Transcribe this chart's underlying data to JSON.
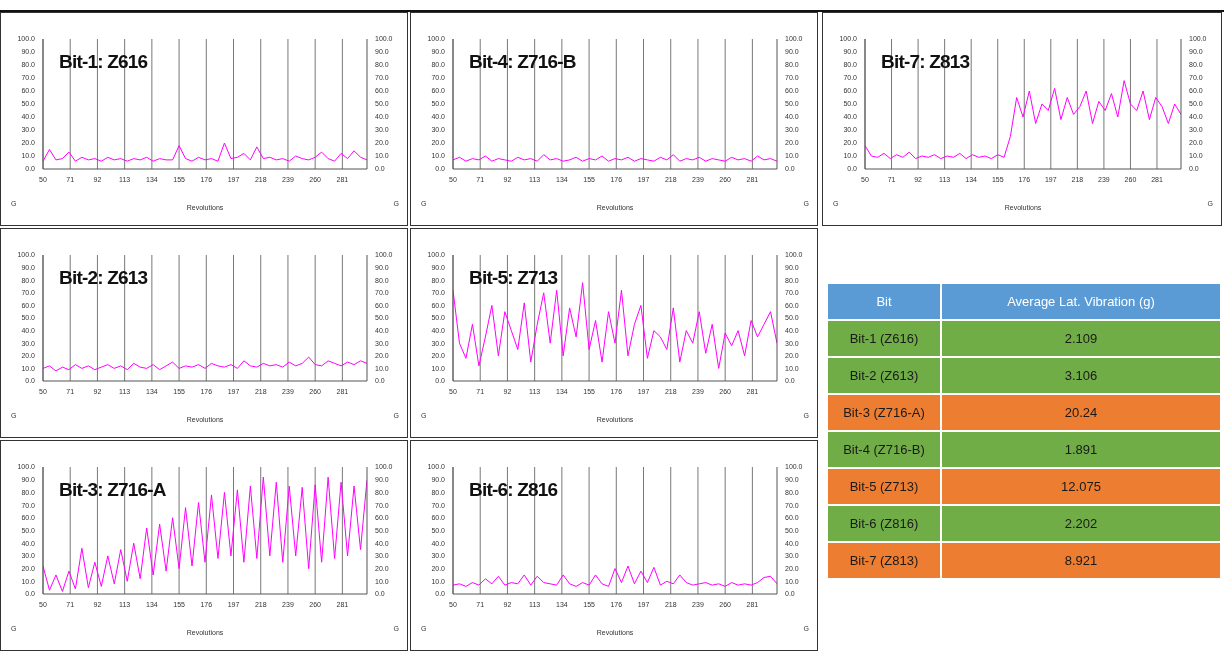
{
  "chart_data": [
    {
      "type": "line",
      "title": "Bit-1: Z616",
      "xlabel": "Revolutions",
      "ylabel": "G",
      "y2label": "G",
      "color": "#ff00ff",
      "grid": true,
      "xlim": [
        50,
        300
      ],
      "xticks": [
        50,
        71,
        92,
        113,
        134,
        155,
        176,
        197,
        218,
        239,
        260,
        281
      ],
      "ylim": [
        0,
        100
      ],
      "yticks": [
        {
          "value": 0,
          "label": "0.0"
        },
        {
          "value": 10,
          "label": "10.0"
        },
        {
          "value": 20,
          "label": "20.0"
        },
        {
          "value": 30,
          "label": "30.0"
        },
        {
          "value": 40,
          "label": "40.0"
        },
        {
          "value": 50,
          "label": "50.0"
        },
        {
          "value": 60,
          "label": "60.0"
        },
        {
          "value": 70,
          "label": "70.0"
        },
        {
          "value": 80,
          "label": "80.0"
        },
        {
          "value": 90,
          "label": "90.0"
        },
        {
          "value": 100,
          "label": "100.0"
        }
      ],
      "y2lim": [
        0,
        100
      ],
      "y2ticks": [
        {
          "value": 0,
          "label": "0.0"
        },
        {
          "value": 10,
          "label": "10.0"
        },
        {
          "value": 20,
          "label": "20.0"
        },
        {
          "value": 30,
          "label": "30.0"
        },
        {
          "value": 40,
          "label": "40.0"
        },
        {
          "value": 50,
          "label": "50.0"
        },
        {
          "value": 60,
          "label": "60.0"
        },
        {
          "value": 70,
          "label": "70.0"
        },
        {
          "value": 80,
          "label": "80.0"
        },
        {
          "value": 90,
          "label": "90.0"
        },
        {
          "value": 100,
          "label": "100.0"
        }
      ],
      "x": [
        50,
        55,
        60,
        65,
        70,
        75,
        80,
        85,
        90,
        95,
        100,
        105,
        110,
        115,
        120,
        125,
        130,
        135,
        140,
        145,
        150,
        155,
        160,
        165,
        170,
        175,
        180,
        185,
        190,
        195,
        200,
        205,
        210,
        215,
        220,
        225,
        230,
        235,
        240,
        245,
        250,
        255,
        260,
        265,
        270,
        275,
        280,
        285,
        290,
        295,
        300
      ],
      "values": [
        6,
        15,
        7,
        8,
        13,
        6,
        9,
        7,
        8,
        6,
        9,
        7,
        8,
        6,
        8,
        7,
        9,
        6,
        8,
        7,
        7,
        18,
        8,
        6,
        9,
        7,
        8,
        6,
        20,
        8,
        9,
        12,
        7,
        17,
        8,
        9,
        7,
        8,
        6,
        10,
        8,
        7,
        9,
        13,
        8,
        6,
        12,
        8,
        14,
        9,
        7
      ]
    },
    {
      "type": "line",
      "title": "Bit-4: Z716-B",
      "xlabel": "Revolutions",
      "ylabel": "G",
      "y2label": "G",
      "color": "#ff00ff",
      "grid": true,
      "xlim": [
        50,
        300
      ],
      "xticks": [
        50,
        71,
        92,
        113,
        134,
        155,
        176,
        197,
        218,
        239,
        260,
        281
      ],
      "ylim": [
        0,
        100
      ],
      "yticks": [
        {
          "value": 0,
          "label": "0.0"
        },
        {
          "value": 10,
          "label": "10.0"
        },
        {
          "value": 20,
          "label": "20.0"
        },
        {
          "value": 30,
          "label": "30.0"
        },
        {
          "value": 40,
          "label": "40.0"
        },
        {
          "value": 50,
          "label": "50.0"
        },
        {
          "value": 60,
          "label": "60.0"
        },
        {
          "value": 70,
          "label": "70.0"
        },
        {
          "value": 80,
          "label": "80.0"
        },
        {
          "value": 90,
          "label": "90.0"
        },
        {
          "value": 100,
          "label": "100.0"
        }
      ],
      "y2lim": [
        0,
        100
      ],
      "y2ticks": [
        {
          "value": 0,
          "label": "0.0"
        },
        {
          "value": 10,
          "label": "10.0"
        },
        {
          "value": 20,
          "label": "20.0"
        },
        {
          "value": 30,
          "label": "30.0"
        },
        {
          "value": 40,
          "label": "40.0"
        },
        {
          "value": 50,
          "label": "50.0"
        },
        {
          "value": 60,
          "label": "60.0"
        },
        {
          "value": 70,
          "label": "70.0"
        },
        {
          "value": 80,
          "label": "80.0"
        },
        {
          "value": 90,
          "label": "90.0"
        },
        {
          "value": 100,
          "label": "100.0"
        }
      ],
      "x": [
        50,
        55,
        60,
        65,
        70,
        75,
        80,
        85,
        90,
        95,
        100,
        105,
        110,
        115,
        120,
        125,
        130,
        135,
        140,
        145,
        150,
        155,
        160,
        165,
        170,
        175,
        180,
        185,
        190,
        195,
        200,
        205,
        210,
        215,
        220,
        225,
        230,
        235,
        240,
        245,
        250,
        255,
        260,
        265,
        270,
        275,
        280,
        285,
        290,
        295,
        300
      ],
      "values": [
        7,
        9,
        6,
        8,
        7,
        10,
        6,
        8,
        7,
        6,
        9,
        7,
        8,
        6,
        11,
        7,
        8,
        6,
        7,
        9,
        6,
        8,
        7,
        10,
        6,
        8,
        7,
        9,
        6,
        8,
        7,
        6,
        9,
        7,
        11,
        6,
        8,
        7,
        9,
        6,
        8,
        7,
        6,
        9,
        7,
        8,
        6,
        10,
        7,
        8,
        6
      ]
    },
    {
      "type": "line",
      "title": "Bit-7: Z813",
      "xlabel": "Revolutions",
      "ylabel": "G",
      "y2label": "G",
      "color": "#ff00ff",
      "grid": true,
      "xlim": [
        50,
        300
      ],
      "xticks": [
        50,
        71,
        92,
        113,
        134,
        155,
        176,
        197,
        218,
        239,
        260,
        281
      ],
      "ylim": [
        0,
        100
      ],
      "yticks": [
        {
          "value": 0,
          "label": "0.0"
        },
        {
          "value": 10,
          "label": "10.0"
        },
        {
          "value": 20,
          "label": "20.0"
        },
        {
          "value": 30,
          "label": "30.0"
        },
        {
          "value": 40,
          "label": "40.0"
        },
        {
          "value": 50,
          "label": "50.0"
        },
        {
          "value": 60,
          "label": "60.0"
        },
        {
          "value": 70,
          "label": "70.0"
        },
        {
          "value": 80,
          "label": "80.0"
        },
        {
          "value": 90,
          "label": "90.0"
        },
        {
          "value": 100,
          "label": "100.0"
        }
      ],
      "y2lim": [
        0,
        100
      ],
      "y2ticks": [
        {
          "value": 0,
          "label": "0.0"
        },
        {
          "value": 10,
          "label": "10.0"
        },
        {
          "value": 20,
          "label": "20.0"
        },
        {
          "value": 30,
          "label": "30.0"
        },
        {
          "value": 40,
          "label": "40.0"
        },
        {
          "value": 50,
          "label": "50.0"
        },
        {
          "value": 60,
          "label": "60.0"
        },
        {
          "value": 70,
          "label": "70.0"
        },
        {
          "value": 80,
          "label": "80.0"
        },
        {
          "value": 90,
          "label": "90.0"
        },
        {
          "value": 100,
          "label": "100.0"
        }
      ],
      "x": [
        50,
        55,
        60,
        65,
        70,
        75,
        80,
        85,
        90,
        95,
        100,
        105,
        110,
        115,
        120,
        125,
        130,
        135,
        140,
        145,
        150,
        155,
        160,
        165,
        170,
        175,
        180,
        185,
        190,
        195,
        200,
        205,
        210,
        215,
        220,
        225,
        230,
        235,
        240,
        245,
        250,
        255,
        260,
        265,
        270,
        275,
        280,
        285,
        290,
        295,
        300
      ],
      "values": [
        18,
        10,
        9,
        12,
        8,
        11,
        9,
        13,
        8,
        10,
        9,
        11,
        8,
        10,
        9,
        12,
        8,
        11,
        9,
        10,
        8,
        11,
        9,
        25,
        55,
        40,
        60,
        35,
        50,
        45,
        62,
        38,
        55,
        42,
        48,
        60,
        35,
        52,
        45,
        58,
        40,
        68,
        50,
        45,
        60,
        38,
        55,
        48,
        35,
        50,
        42
      ]
    },
    {
      "type": "line",
      "title": "Bit-2: Z613",
      "xlabel": "Revolutions",
      "ylabel": "G",
      "y2label": "G",
      "color": "#ff00ff",
      "grid": true,
      "xlim": [
        50,
        300
      ],
      "xticks": [
        50,
        71,
        92,
        113,
        134,
        155,
        176,
        197,
        218,
        239,
        260,
        281
      ],
      "ylim": [
        0,
        100
      ],
      "yticks": [
        {
          "value": 0,
          "label": "0.0"
        },
        {
          "value": 10,
          "label": "10.0"
        },
        {
          "value": 20,
          "label": "20.0"
        },
        {
          "value": 30,
          "label": "30.0"
        },
        {
          "value": 40,
          "label": "40.0"
        },
        {
          "value": 50,
          "label": "50.0"
        },
        {
          "value": 60,
          "label": "60.0"
        },
        {
          "value": 70,
          "label": "70.0"
        },
        {
          "value": 80,
          "label": "80.0"
        },
        {
          "value": 90,
          "label": "90.0"
        },
        {
          "value": 100,
          "label": "100.0"
        }
      ],
      "y2lim": [
        0,
        100
      ],
      "y2ticks": [
        {
          "value": 0,
          "label": "0.0"
        },
        {
          "value": 10,
          "label": "10.0"
        },
        {
          "value": 20,
          "label": "20.0"
        },
        {
          "value": 30,
          "label": "30.0"
        },
        {
          "value": 40,
          "label": "40.0"
        },
        {
          "value": 50,
          "label": "50.0"
        },
        {
          "value": 60,
          "label": "60.0"
        },
        {
          "value": 70,
          "label": "70.0"
        },
        {
          "value": 80,
          "label": "80.0"
        },
        {
          "value": 90,
          "label": "90.0"
        },
        {
          "value": 100,
          "label": "100.0"
        }
      ],
      "x": [
        50,
        55,
        60,
        65,
        70,
        75,
        80,
        85,
        90,
        95,
        100,
        105,
        110,
        115,
        120,
        125,
        130,
        135,
        140,
        145,
        150,
        155,
        160,
        165,
        170,
        175,
        180,
        185,
        190,
        195,
        200,
        205,
        210,
        215,
        220,
        225,
        230,
        235,
        240,
        245,
        250,
        255,
        260,
        265,
        270,
        275,
        280,
        285,
        290,
        295,
        300
      ],
      "values": [
        10,
        12,
        8,
        11,
        9,
        13,
        10,
        12,
        9,
        11,
        13,
        10,
        12,
        9,
        14,
        11,
        10,
        13,
        9,
        12,
        15,
        10,
        12,
        11,
        13,
        10,
        14,
        12,
        11,
        13,
        10,
        16,
        12,
        11,
        14,
        12,
        13,
        11,
        15,
        12,
        14,
        19,
        13,
        12,
        16,
        14,
        12,
        15,
        13,
        16,
        14
      ]
    },
    {
      "type": "line",
      "title": "Bit-5: Z713",
      "xlabel": "Revolutions",
      "ylabel": "G",
      "y2label": "G",
      "color": "#ff00ff",
      "grid": true,
      "xlim": [
        50,
        300
      ],
      "xticks": [
        50,
        71,
        92,
        113,
        134,
        155,
        176,
        197,
        218,
        239,
        260,
        281
      ],
      "ylim": [
        0,
        100
      ],
      "yticks": [
        {
          "value": 0,
          "label": "0.0"
        },
        {
          "value": 10,
          "label": "10.0"
        },
        {
          "value": 20,
          "label": "20.0"
        },
        {
          "value": 30,
          "label": "30.0"
        },
        {
          "value": 40,
          "label": "40.0"
        },
        {
          "value": 50,
          "label": "50.0"
        },
        {
          "value": 60,
          "label": "60.0"
        },
        {
          "value": 70,
          "label": "70.0"
        },
        {
          "value": 80,
          "label": "80.0"
        },
        {
          "value": 90,
          "label": "90.0"
        },
        {
          "value": 100,
          "label": "100.0"
        }
      ],
      "y2lim": [
        0,
        100
      ],
      "y2ticks": [
        {
          "value": 0,
          "label": "0.0"
        },
        {
          "value": 10,
          "label": "10.0"
        },
        {
          "value": 20,
          "label": "20.0"
        },
        {
          "value": 30,
          "label": "30.0"
        },
        {
          "value": 40,
          "label": "40.0"
        },
        {
          "value": 50,
          "label": "50.0"
        },
        {
          "value": 60,
          "label": "60.0"
        },
        {
          "value": 70,
          "label": "70.0"
        },
        {
          "value": 80,
          "label": "80.0"
        },
        {
          "value": 90,
          "label": "90.0"
        },
        {
          "value": 100,
          "label": "100.0"
        }
      ],
      "x": [
        50,
        55,
        60,
        65,
        70,
        75,
        80,
        85,
        90,
        95,
        100,
        105,
        110,
        115,
        120,
        125,
        130,
        135,
        140,
        145,
        150,
        155,
        160,
        165,
        170,
        175,
        180,
        185,
        190,
        195,
        200,
        205,
        210,
        215,
        220,
        225,
        230,
        235,
        240,
        245,
        250,
        255,
        260,
        265,
        270,
        275,
        280,
        285,
        290,
        295,
        300
      ],
      "values": [
        72,
        30,
        18,
        45,
        12,
        35,
        60,
        20,
        55,
        40,
        25,
        62,
        15,
        45,
        70,
        30,
        72,
        20,
        58,
        35,
        78,
        25,
        48,
        15,
        55,
        30,
        72,
        20,
        45,
        60,
        18,
        40,
        35,
        25,
        58,
        15,
        40,
        30,
        55,
        22,
        45,
        10,
        38,
        28,
        40,
        20,
        48,
        35,
        45,
        55,
        30
      ]
    },
    {
      "type": "other",
      "data_labels": true,
      "xlabel": "Bit",
      "ylabel": "Average Lat. Vibration (g)",
      "categories": [
        "Bit-1 (Z616)",
        "Bit-2 (Z613)",
        "Bit-3 (Z716-A)",
        "Bit-4 (Z716-B)",
        "Bit-5 (Z713)",
        "Bit-6 (Z816)",
        "Bit-7 (Z813)"
      ],
      "values": [
        2.109,
        3.106,
        20.24,
        1.891,
        12.075,
        2.202,
        8.921
      ],
      "colors": [
        "#70ad47",
        "#70ad47",
        "#ed7d31",
        "#70ad47",
        "#ed7d31",
        "#70ad47",
        "#ed7d31"
      ]
    },
    {
      "type": "line",
      "title": "Bit-3: Z716-A",
      "xlabel": "Revolutions",
      "ylabel": "G",
      "y2label": "G",
      "color": "#ff00ff",
      "grid": true,
      "xlim": [
        50,
        300
      ],
      "xticks": [
        50,
        71,
        92,
        113,
        134,
        155,
        176,
        197,
        218,
        239,
        260,
        281
      ],
      "ylim": [
        0,
        100
      ],
      "yticks": [
        {
          "value": 0,
          "label": "0.0"
        },
        {
          "value": 10,
          "label": "10.0"
        },
        {
          "value": 20,
          "label": "20.0"
        },
        {
          "value": 30,
          "label": "30.0"
        },
        {
          "value": 40,
          "label": "40.0"
        },
        {
          "value": 50,
          "label": "50.0"
        },
        {
          "value": 60,
          "label": "60.0"
        },
        {
          "value": 70,
          "label": "70.0"
        },
        {
          "value": 80,
          "label": "80.0"
        },
        {
          "value": 90,
          "label": "90.0"
        },
        {
          "value": 100,
          "label": "100.0"
        }
      ],
      "y2lim": [
        0,
        100
      ],
      "y2ticks": [
        {
          "value": 0,
          "label": "0.0"
        },
        {
          "value": 10,
          "label": "10.0"
        },
        {
          "value": 20,
          "label": "20.0"
        },
        {
          "value": 30,
          "label": "30.0"
        },
        {
          "value": 40,
          "label": "40.0"
        },
        {
          "value": 50,
          "label": "50.0"
        },
        {
          "value": 60,
          "label": "60.0"
        },
        {
          "value": 70,
          "label": "70.0"
        },
        {
          "value": 80,
          "label": "80.0"
        },
        {
          "value": 90,
          "label": "90.0"
        },
        {
          "value": 100,
          "label": "100.0"
        }
      ],
      "x": [
        50,
        55,
        60,
        65,
        70,
        75,
        80,
        85,
        90,
        95,
        100,
        105,
        110,
        115,
        120,
        125,
        130,
        135,
        140,
        145,
        150,
        155,
        160,
        165,
        170,
        175,
        180,
        185,
        190,
        195,
        200,
        205,
        210,
        215,
        220,
        225,
        230,
        235,
        240,
        245,
        250,
        255,
        260,
        265,
        270,
        275,
        280,
        285,
        290,
        295,
        300
      ],
      "values": [
        22,
        3,
        15,
        2,
        18,
        4,
        36,
        5,
        25,
        6,
        30,
        8,
        35,
        10,
        40,
        12,
        52,
        15,
        55,
        18,
        60,
        20,
        68,
        22,
        72,
        25,
        78,
        28,
        80,
        30,
        82,
        25,
        85,
        28,
        92,
        30,
        88,
        25,
        85,
        30,
        84,
        20,
        86,
        25,
        92,
        28,
        88,
        30,
        85,
        35,
        90
      ]
    },
    {
      "type": "line",
      "title": "Bit-6: Z816",
      "xlabel": "Revolutions",
      "ylabel": "G",
      "y2label": "G",
      "color": "#ff00ff",
      "grid": true,
      "xlim": [
        50,
        300
      ],
      "xticks": [
        50,
        71,
        92,
        113,
        134,
        155,
        176,
        197,
        218,
        239,
        260,
        281
      ],
      "ylim": [
        0,
        100
      ],
      "yticks": [
        {
          "value": 0,
          "label": "0.0"
        },
        {
          "value": 10,
          "label": "10.0"
        },
        {
          "value": 20,
          "label": "20.0"
        },
        {
          "value": 30,
          "label": "30.0"
        },
        {
          "value": 40,
          "label": "40.0"
        },
        {
          "value": 50,
          "label": "50.0"
        },
        {
          "value": 60,
          "label": "60.0"
        },
        {
          "value": 70,
          "label": "70.0"
        },
        {
          "value": 80,
          "label": "80.0"
        },
        {
          "value": 90,
          "label": "90.0"
        },
        {
          "value": 100,
          "label": "100.0"
        }
      ],
      "y2lim": [
        0,
        100
      ],
      "y2ticks": [
        {
          "value": 0,
          "label": "0.0"
        },
        {
          "value": 10,
          "label": "10.0"
        },
        {
          "value": 20,
          "label": "20.0"
        },
        {
          "value": 30,
          "label": "30.0"
        },
        {
          "value": 40,
          "label": "40.0"
        },
        {
          "value": 50,
          "label": "50.0"
        },
        {
          "value": 60,
          "label": "60.0"
        },
        {
          "value": 70,
          "label": "70.0"
        },
        {
          "value": 80,
          "label": "80.0"
        },
        {
          "value": 90,
          "label": "90.0"
        },
        {
          "value": 100,
          "label": "100.0"
        }
      ],
      "x": [
        50,
        55,
        60,
        65,
        70,
        75,
        80,
        85,
        90,
        95,
        100,
        105,
        110,
        115,
        120,
        125,
        130,
        135,
        140,
        145,
        150,
        155,
        160,
        165,
        170,
        175,
        180,
        185,
        190,
        195,
        200,
        205,
        210,
        215,
        220,
        225,
        230,
        235,
        240,
        245,
        250,
        255,
        260,
        265,
        270,
        275,
        280,
        285,
        290,
        295,
        300
      ],
      "values": [
        7,
        8,
        6,
        9,
        7,
        12,
        8,
        14,
        7,
        9,
        8,
        15,
        7,
        14,
        9,
        8,
        7,
        15,
        8,
        6,
        9,
        7,
        15,
        8,
        6,
        20,
        9,
        22,
        8,
        18,
        9,
        21,
        7,
        10,
        8,
        15,
        9,
        7,
        8,
        9,
        7,
        8,
        6,
        9,
        7,
        8,
        7,
        9,
        13,
        14,
        8
      ]
    }
  ]
}
